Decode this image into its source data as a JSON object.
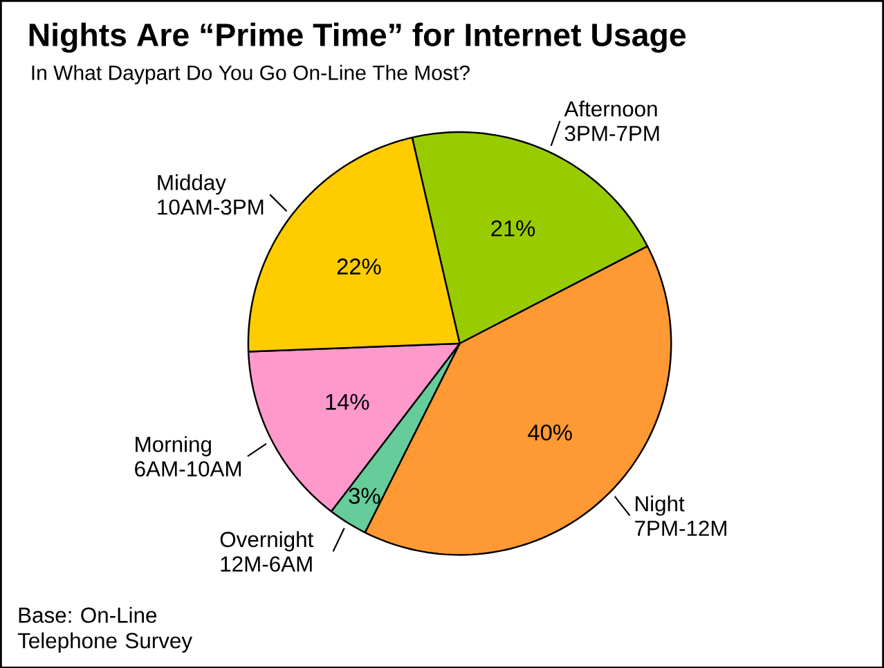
{
  "chart_data": {
    "type": "pie",
    "title": "Nights Are “Prime Time” for Internet Usage",
    "subtitle": "In What Daypart Do You Go On-Line The Most?",
    "categories": [
      "Afternoon 3PM-7PM",
      "Night 7PM-12M",
      "Overnight 12M-6AM",
      "Morning 6AM-10AM",
      "Midday 10AM-3PM"
    ],
    "values": [
      21,
      40,
      3,
      14,
      22
    ],
    "colors": [
      "#99cc00",
      "#ff9933",
      "#66cc99",
      "#ff99cc",
      "#ffcc00"
    ],
    "value_labels": [
      "21%",
      "40%",
      "3%",
      "14%",
      "22%"
    ],
    "annotations": [
      "Base: On-Line Telephone Survey"
    ]
  }
}
